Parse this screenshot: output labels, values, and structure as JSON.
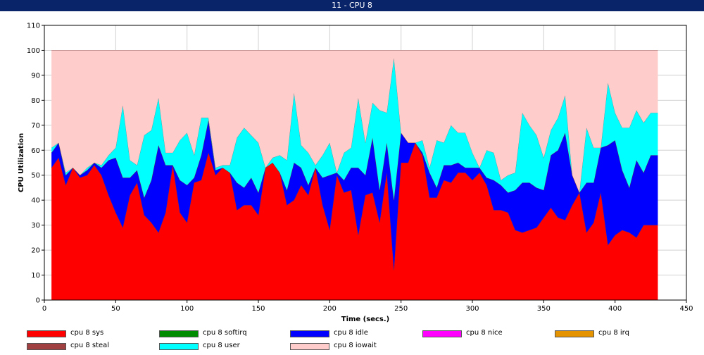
{
  "window": {
    "title": "11 - CPU 8"
  },
  "chart_data": {
    "type": "area",
    "stacked": true,
    "xlabel": "Time (secs.)",
    "ylabel": "CPU Utilization",
    "xlim": [
      0,
      450
    ],
    "ylim": [
      0,
      110
    ],
    "xticks": [
      0,
      50,
      100,
      150,
      200,
      250,
      300,
      350,
      400,
      450
    ],
    "yticks": [
      0,
      10,
      20,
      30,
      40,
      50,
      60,
      70,
      80,
      90,
      100,
      110
    ],
    "grid": true,
    "legend_position": "bottom",
    "x": [
      5,
      10,
      15,
      20,
      25,
      30,
      35,
      40,
      45,
      50,
      55,
      60,
      65,
      70,
      75,
      80,
      85,
      90,
      95,
      100,
      105,
      110,
      115,
      120,
      125,
      130,
      135,
      140,
      145,
      150,
      155,
      160,
      165,
      170,
      175,
      180,
      185,
      190,
      195,
      200,
      205,
      210,
      215,
      220,
      225,
      230,
      235,
      240,
      245,
      250,
      255,
      260,
      265,
      270,
      275,
      280,
      285,
      290,
      295,
      300,
      305,
      310,
      315,
      320,
      325,
      330,
      335,
      340,
      345,
      350,
      355,
      360,
      365,
      370,
      375,
      380,
      385,
      390,
      395,
      400,
      405,
      410,
      415,
      420,
      425,
      430
    ],
    "series": [
      {
        "name": "cpu 8 sys",
        "color": "#ff0000",
        "values": [
          53,
          57,
          46,
          53,
          49,
          50,
          54,
          50,
          42,
          35,
          29,
          42,
          47,
          34,
          31,
          27,
          35,
          54,
          35,
          31,
          47,
          48,
          59,
          50,
          53,
          51,
          36,
          38,
          38,
          34,
          53,
          55,
          51,
          38,
          40,
          46,
          42,
          53,
          38,
          28,
          50,
          43,
          44,
          26,
          42,
          43,
          31,
          51,
          12,
          55,
          55,
          63,
          58,
          41,
          41,
          48,
          47,
          51,
          51,
          48,
          51,
          46,
          36,
          36,
          35,
          28,
          27,
          28,
          29,
          33,
          37,
          33,
          32,
          38,
          43,
          27,
          31,
          43,
          22,
          26,
          28,
          27,
          25,
          30,
          30,
          30
        ]
      },
      {
        "name": "cpu 8 softirq",
        "color": "#008c00",
        "values": [
          0,
          0,
          0,
          0,
          0,
          0,
          0,
          0,
          0,
          0,
          0,
          0,
          0,
          0,
          0,
          0,
          0,
          0,
          0,
          0,
          0,
          0,
          0,
          0,
          0,
          0,
          0,
          0,
          0,
          0,
          0,
          0,
          0,
          0,
          0,
          0,
          0,
          0,
          0,
          0,
          0,
          0,
          0,
          0,
          0,
          0,
          0,
          0,
          0,
          0,
          0,
          0,
          0,
          0,
          0,
          0,
          0,
          0,
          0,
          0,
          0,
          0,
          0,
          0,
          0,
          0,
          0,
          0,
          0,
          0,
          0,
          0,
          0,
          0,
          0,
          0,
          0,
          0,
          0,
          0,
          0,
          0,
          0,
          0,
          0,
          0
        ]
      },
      {
        "name": "cpu 8 idle",
        "color": "#0000ff",
        "values": [
          6,
          6,
          4,
          0,
          1,
          2,
          1,
          3,
          14,
          22,
          20,
          7,
          5,
          7,
          17,
          35,
          19,
          0,
          13,
          15,
          2,
          10,
          13,
          2,
          0,
          0,
          11,
          7,
          11,
          9,
          0,
          0,
          0,
          6,
          15,
          7,
          4,
          0,
          11,
          22,
          1,
          5,
          9,
          27,
          8,
          22,
          13,
          12,
          28,
          12,
          8,
          0,
          1,
          10,
          4,
          6,
          7,
          4,
          2,
          5,
          2,
          3,
          12,
          10,
          8,
          16,
          20,
          19,
          16,
          11,
          21,
          27,
          35,
          12,
          0,
          20,
          16,
          18,
          40,
          38,
          24,
          18,
          31,
          21,
          28,
          28
        ]
      },
      {
        "name": "cpu 8 nice",
        "color": "#ff00ff",
        "values": [
          0,
          0,
          0,
          0,
          0,
          0,
          0,
          0,
          0,
          0,
          0,
          0,
          0,
          0,
          0,
          0,
          0,
          0,
          0,
          0,
          0,
          0,
          0,
          0,
          0,
          0,
          0,
          0,
          0,
          0,
          0,
          0,
          0,
          0,
          0,
          0,
          0,
          0,
          0,
          0,
          0,
          0,
          0,
          0,
          0,
          0,
          0,
          0,
          0,
          0,
          0,
          0,
          0,
          0,
          0,
          0,
          0,
          0,
          0,
          0,
          0,
          0,
          0,
          0,
          0,
          0,
          0,
          0,
          0,
          0,
          0,
          0,
          0,
          0,
          0,
          0,
          0,
          0,
          0,
          0,
          0,
          0,
          0,
          0,
          0,
          0
        ]
      },
      {
        "name": "cpu 8 irq",
        "color": "#e59400",
        "values": [
          0,
          0,
          0,
          0,
          0,
          0,
          0,
          0,
          0,
          0,
          0,
          0,
          0,
          0,
          0,
          0,
          0,
          0,
          0,
          0,
          0,
          0,
          0,
          0,
          0,
          0,
          0,
          0,
          0,
          0,
          0,
          0,
          0,
          0,
          0,
          0,
          0,
          0,
          0,
          0,
          0,
          0,
          0,
          0,
          0,
          0,
          0,
          0,
          0,
          0,
          0,
          0,
          0,
          0,
          0,
          0,
          0,
          0,
          0,
          0,
          0,
          0,
          0,
          0,
          0,
          0,
          0,
          0,
          0,
          0,
          0,
          0,
          0,
          0,
          0,
          0,
          0,
          0,
          0,
          0,
          0,
          0,
          0,
          0,
          0,
          0
        ]
      },
      {
        "name": "cpu 8 steal",
        "color": "#a04040",
        "values": [
          0,
          0,
          0,
          0,
          0,
          0,
          0,
          0,
          0,
          0,
          0,
          0,
          0,
          0,
          0,
          0,
          0,
          0,
          0,
          0,
          0,
          0,
          0,
          0,
          0,
          0,
          0,
          0,
          0,
          0,
          0,
          0,
          0,
          0,
          0,
          0,
          0,
          0,
          0,
          0,
          0,
          0,
          0,
          0,
          0,
          0,
          0,
          0,
          0,
          0,
          0,
          0,
          0,
          0,
          0,
          0,
          0,
          0,
          0,
          0,
          0,
          0,
          0,
          0,
          0,
          0,
          0,
          0,
          0,
          0,
          0,
          0,
          0,
          0,
          0,
          0,
          0,
          0,
          0,
          0,
          0,
          0,
          0,
          0,
          0,
          0
        ]
      },
      {
        "name": "cpu 8 user",
        "color": "#00ffff",
        "values": [
          2,
          0,
          1,
          0,
          0,
          1,
          0,
          1,
          2,
          4,
          29,
          7,
          2,
          25,
          20,
          19,
          5,
          5,
          16,
          21,
          9,
          15,
          1,
          1,
          1,
          3,
          18,
          24,
          17,
          20,
          0,
          2,
          7,
          12,
          28,
          9,
          13,
          1,
          9,
          13,
          0,
          11,
          8,
          28,
          13,
          14,
          32,
          12,
          57,
          0,
          0,
          0,
          5,
          2,
          19,
          9,
          16,
          12,
          14,
          6,
          0,
          11,
          11,
          2,
          7,
          7,
          28,
          23,
          21,
          13,
          10,
          13,
          15,
          0,
          0,
          22,
          14,
          0,
          25,
          11,
          17,
          24,
          20,
          20,
          17,
          17
        ]
      },
      {
        "name": "cpu 8 iowait",
        "color": "#ffcccc",
        "values": [
          39,
          37,
          49,
          47,
          50,
          47,
          45,
          46,
          42,
          39,
          22,
          44,
          46,
          34,
          32,
          19,
          41,
          41,
          36,
          33,
          42,
          27,
          27,
          47,
          46,
          46,
          35,
          31,
          34,
          37,
          47,
          43,
          42,
          44,
          17,
          38,
          41,
          46,
          42,
          37,
          49,
          41,
          39,
          19,
          37,
          21,
          24,
          25,
          3,
          33,
          37,
          37,
          36,
          47,
          36,
          37,
          30,
          33,
          33,
          41,
          47,
          40,
          41,
          52,
          50,
          49,
          25,
          30,
          34,
          43,
          32,
          27,
          18,
          50,
          57,
          31,
          39,
          39,
          13,
          25,
          31,
          31,
          24,
          29,
          25,
          25
        ]
      }
    ]
  }
}
